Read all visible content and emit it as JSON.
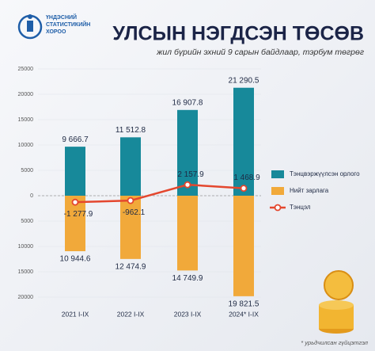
{
  "chart_data": {
    "type": "bar",
    "title": "УЛСЫН НЭГДСЭН ТӨСӨВ",
    "subtitle": "жил бүрийн эхний 9 сарын байдлаар, тэрбум төгрөг",
    "org": [
      "ҮНДЭСНИЙ",
      "СТАТИСТИКИЙН",
      "ХОРОО"
    ],
    "note": "* урьдчилсан гүйцэтгэл",
    "categories": [
      "2021 I-IX",
      "2022 I-IX",
      "2023 I-IX",
      "2024* I-IX"
    ],
    "series": [
      {
        "name": "Тэнцвэржүүлсэн орлого",
        "type": "bar",
        "color": "#17899a",
        "values": [
          9666.7,
          11512.8,
          16907.8,
          21290.5
        ],
        "value_labels": [
          "9 666.7",
          "11 512.8",
          "16 907.8",
          "21 290.5"
        ]
      },
      {
        "name": "Нийт зарлага",
        "type": "bar",
        "color": "#f1a93a",
        "values": [
          -10944.6,
          -12474.9,
          -14749.9,
          -19821.5
        ],
        "value_labels": [
          "10 944.6",
          "12 474.9",
          "14 749.9",
          "19 821.5"
        ]
      },
      {
        "name": "Тэнцэл",
        "type": "line",
        "color": "#e4472e",
        "values": [
          -1277.9,
          -962.1,
          2157.9,
          1468.9
        ],
        "value_labels": [
          "-1 277.9",
          "-962.1",
          "2 157.9",
          "1 468.9"
        ]
      }
    ],
    "ylim": [
      -20000,
      25000
    ],
    "yticks": [
      25000,
      20000,
      15000,
      10000,
      5000,
      0,
      {
        "value": -5000,
        "label": "5000"
      },
      {
        "value": -10000,
        "label": "10000"
      },
      {
        "value": -15000,
        "label": "15000"
      },
      {
        "value": -20000,
        "label": "20000"
      }
    ],
    "grid": true,
    "legend": "right"
  }
}
